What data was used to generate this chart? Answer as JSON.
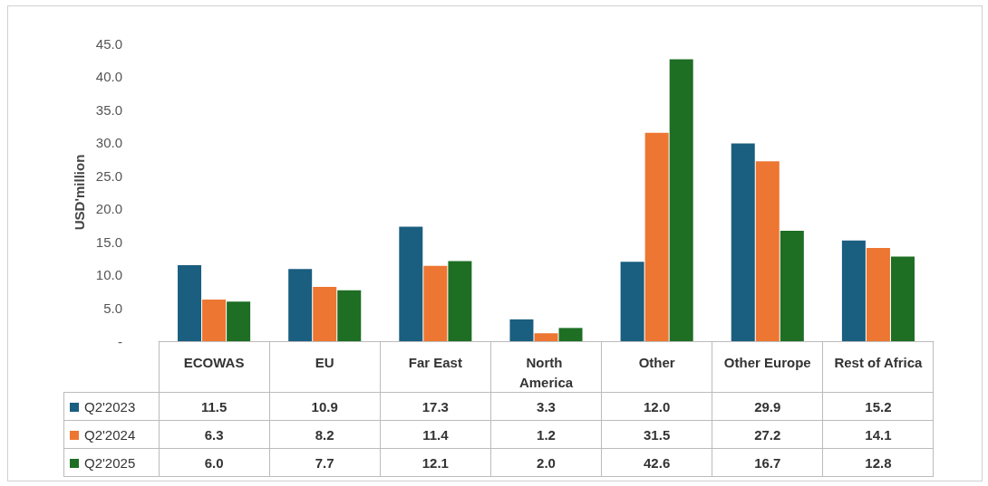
{
  "chart_data": {
    "type": "bar",
    "ylabel": "USD'million",
    "categories": [
      "ECOWAS",
      "EU",
      "Far East",
      "North America",
      "Other",
      "Other Europe",
      "Rest of Africa"
    ],
    "series": [
      {
        "name": "Q2'2023",
        "color": "#1a5e80",
        "values": [
          11.5,
          10.9,
          17.3,
          3.3,
          12.0,
          29.9,
          15.2
        ],
        "value_labels": [
          "11.5",
          "10.9",
          "17.3",
          "3.3",
          "12.0",
          "29.9",
          "15.2"
        ]
      },
      {
        "name": "Q2'2024",
        "color": "#ed7632",
        "values": [
          6.3,
          8.2,
          11.4,
          1.2,
          31.5,
          27.2,
          14.1
        ],
        "value_labels": [
          "6.3",
          "8.2",
          "11.4",
          "1.2",
          "31.5",
          "27.2",
          "14.1"
        ]
      },
      {
        "name": "Q2'2025",
        "color": "#1e6e24",
        "values": [
          6.0,
          7.7,
          12.1,
          2.0,
          42.6,
          16.7,
          12.8
        ],
        "value_labels": [
          "6.0",
          "7.7",
          "12.1",
          "2.0",
          "42.6",
          "16.7",
          "12.8"
        ]
      }
    ],
    "ylim": [
      0,
      45
    ],
    "yticks": [
      {
        "value": 0,
        "label": "-"
      },
      {
        "value": 5,
        "label": "5.0"
      },
      {
        "value": 10,
        "label": "10.0"
      },
      {
        "value": 15,
        "label": "15.0"
      },
      {
        "value": 20,
        "label": "20.0"
      },
      {
        "value": 25,
        "label": "25.0"
      },
      {
        "value": 30,
        "label": "30.0"
      },
      {
        "value": 35,
        "label": "35.0"
      },
      {
        "value": 40,
        "label": "40.0"
      },
      {
        "value": 45,
        "label": "45.0"
      }
    ],
    "legend": "bottom"
  }
}
